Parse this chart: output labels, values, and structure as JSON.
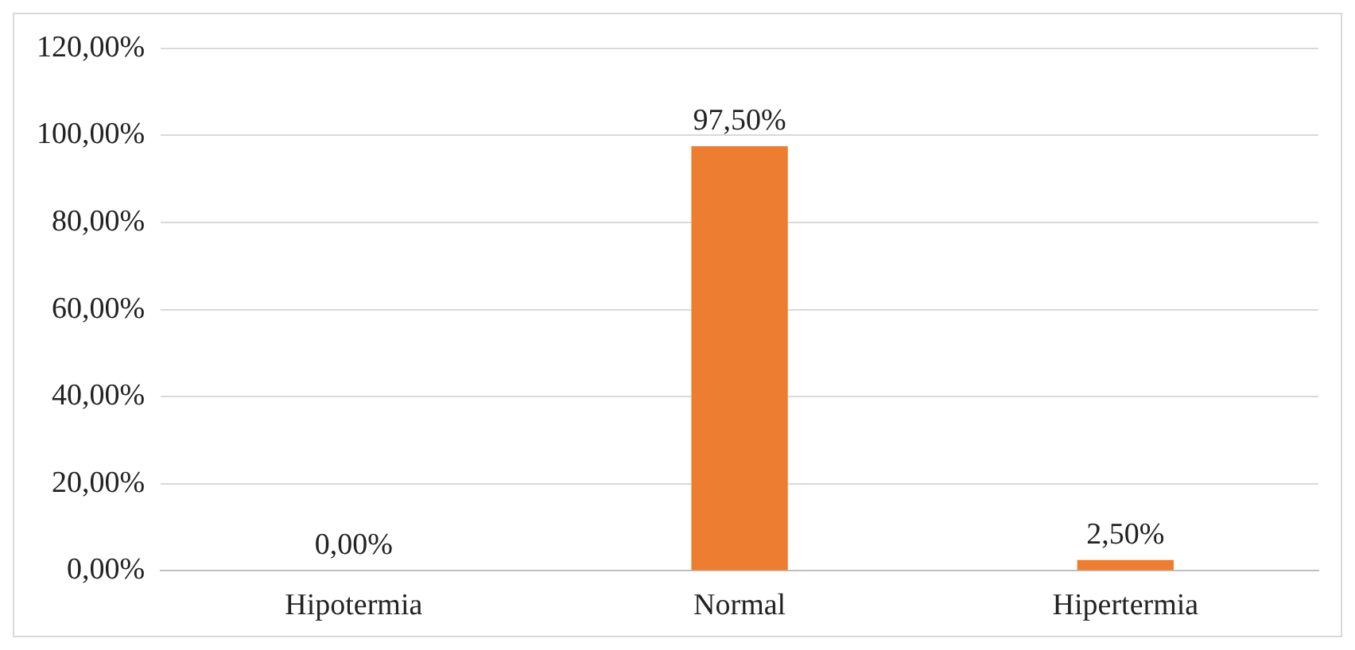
{
  "chart_data": {
    "type": "bar",
    "categories": [
      "Hipotermia",
      "Normal",
      "Hipertermia"
    ],
    "values": [
      0,
      97.5,
      2.5
    ],
    "color": "#ed7d31",
    "value_labels": [
      "0,00%",
      "97,50%",
      "2,50%"
    ],
    "ylim": [
      0,
      120
    ],
    "yticks": [
      {
        "value": 0,
        "label": "0,00%"
      },
      {
        "value": 20,
        "label": "20,00%"
      },
      {
        "value": 40,
        "label": "40,00%"
      },
      {
        "value": 60,
        "label": "60,00%"
      },
      {
        "value": 80,
        "label": "80,00%"
      },
      {
        "value": 100,
        "label": "100,00%"
      },
      {
        "value": 120,
        "label": "120,00%"
      }
    ],
    "grid": "y",
    "legend": false
  }
}
